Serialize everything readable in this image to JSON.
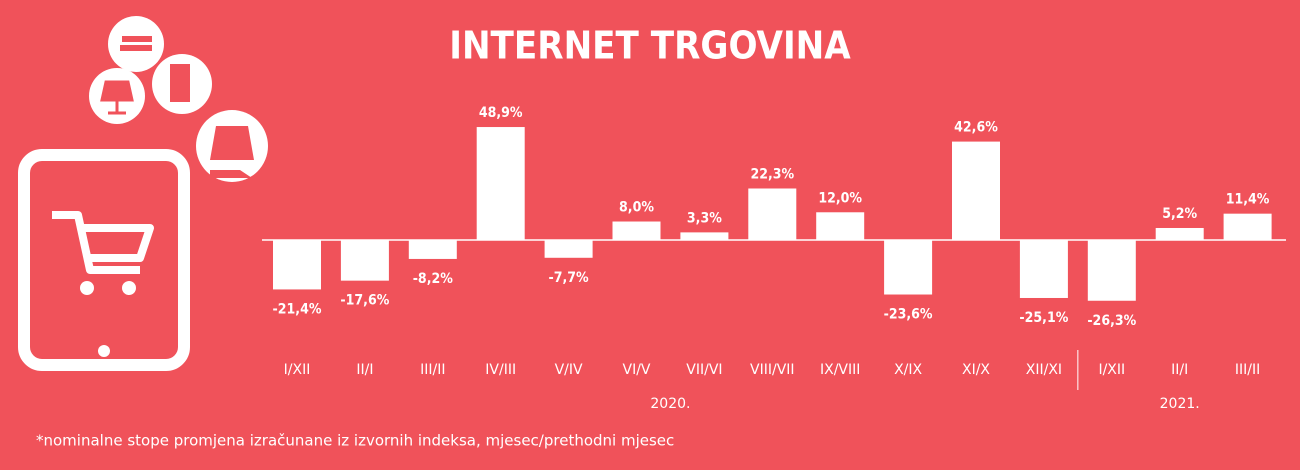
{
  "chart_data": {
    "type": "bar",
    "title": "INTERNET TRGOVINA",
    "color": "#ffffff",
    "groups": [
      {
        "name": "2020.",
        "categories": [
          "I/XII",
          "II/I",
          "III/II",
          "IV/III",
          "V/IV",
          "VI/V",
          "VII/VI",
          "VIII/VII",
          "IX/VIII",
          "X/IX",
          "XI/X",
          "XII/XI"
        ],
        "values": [
          -21.4,
          -17.6,
          -8.2,
          48.9,
          -7.7,
          8.0,
          3.3,
          22.3,
          12.0,
          -23.6,
          42.6,
          -25.1
        ],
        "value_labels": [
          "-21,4%",
          "-17,6%",
          "-8,2%",
          "48,9%",
          "-7,7%",
          "8,0%",
          "3,3%",
          "22,3%",
          "12,0%",
          "-23,6%",
          "42,6%",
          "-25,1%"
        ]
      },
      {
        "name": "2021.",
        "categories": [
          "I/XII",
          "II/I",
          "III/II"
        ],
        "values": [
          -26.3,
          5.2,
          11.4
        ],
        "value_labels": [
          "-26,3%",
          "5,2%",
          "11,4%"
        ]
      }
    ],
    "footnote": "*nominalne stope promjena izračunane iz izvornih indeksa, mjesec/prethodni mjesec"
  }
}
